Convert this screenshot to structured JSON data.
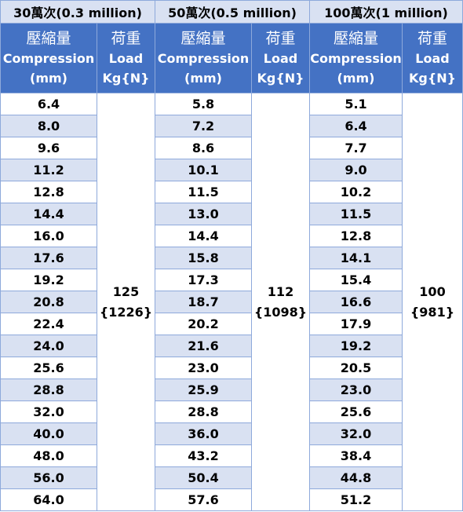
{
  "groups": [
    {
      "title": "30萬次(0.3 million)",
      "compression_header": [
        "壓縮量",
        "Compression",
        "(mm)"
      ],
      "load_header": [
        "荷重",
        "Load",
        "Kg{N}"
      ],
      "load_value": "125",
      "load_newton": "{1226}",
      "compression_values": [
        "6.4",
        "8.0",
        "9.6",
        "11.2",
        "12.8",
        "14.4",
        "16.0",
        "17.6",
        "19.2",
        "20.8",
        "22.4",
        "24.0",
        "25.6",
        "28.8",
        "32.0",
        "40.0",
        "48.0",
        "56.0",
        "64.0"
      ]
    },
    {
      "title": "50萬次(0.5 million)",
      "compression_header": [
        "壓縮量",
        "Compression",
        "(mm)"
      ],
      "load_header": [
        "荷重",
        "Load",
        "Kg{N}"
      ],
      "load_value": "112",
      "load_newton": "{1098}",
      "compression_values": [
        "5.8",
        "7.2",
        "8.6",
        "10.1",
        "11.5",
        "13.0",
        "14.4",
        "15.8",
        "17.3",
        "18.7",
        "20.2",
        "21.6",
        "23.0",
        "25.9",
        "28.8",
        "36.0",
        "43.2",
        "50.4",
        "57.6"
      ]
    },
    {
      "title": "100萬次(1 million)",
      "compression_header": [
        "壓縮量",
        "Compression",
        "(mm)"
      ],
      "load_header": [
        "荷重",
        "Load",
        "Kg{N}"
      ],
      "load_value": "100",
      "load_newton": "{981}",
      "compression_values": [
        "5.1",
        "6.4",
        "7.7",
        "9.0",
        "10.2",
        "11.5",
        "12.8",
        "14.1",
        "15.4",
        "16.6",
        "17.9",
        "19.2",
        "20.5",
        "23.0",
        "25.6",
        "32.0",
        "38.4",
        "44.8",
        "51.2"
      ]
    }
  ],
  "colors": {
    "header_fill": "#4472c4",
    "band_fill": "#d9e1f2",
    "border": "#8ea9db"
  }
}
